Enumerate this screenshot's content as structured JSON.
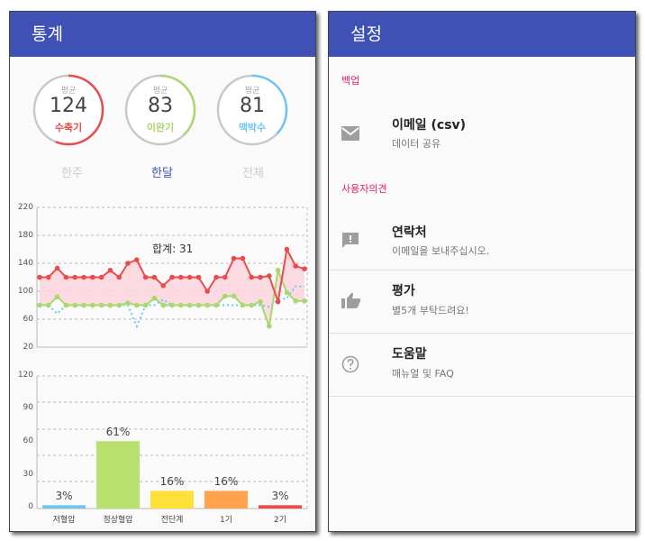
{
  "stats_screen": {
    "title": "통계",
    "rings": [
      {
        "label": "평균",
        "value": "124",
        "name": "수축기",
        "color": "#e84c4c",
        "progress": 0.56
      },
      {
        "label": "평균",
        "value": "83",
        "name": "이완기",
        "color": "#a8d86e",
        "progress": 0.38
      },
      {
        "label": "평균",
        "value": "81",
        "name": "맥박수",
        "color": "#6ec6f0",
        "progress": 0.37
      }
    ],
    "periods": [
      {
        "label": "한주",
        "active": false
      },
      {
        "label": "한달",
        "active": true
      },
      {
        "label": "전체",
        "active": false
      }
    ],
    "line_chart_annotation": "합계: 31",
    "line_chart_ticks": [
      "220",
      "180",
      "140",
      "100",
      "60",
      "20"
    ],
    "bar_chart_ticks": [
      "120",
      "90",
      "60",
      "30",
      "0"
    ],
    "bar_labels": [
      "3%",
      "61%",
      "16%",
      "16%",
      "3%"
    ],
    "bar_categories": [
      "저혈압",
      "정상혈압",
      "전단계",
      "1기",
      "2기"
    ]
  },
  "settings_screen": {
    "title": "설정",
    "sections": [
      {
        "header": "백업",
        "items": [
          {
            "icon": "email-icon",
            "title": "이메일 (csv)",
            "subtitle": "데이터 공유"
          }
        ]
      },
      {
        "header": "사용자의견",
        "items": [
          {
            "icon": "feedback-icon",
            "title": "연락처",
            "subtitle": "이메일을 보내주십시오."
          },
          {
            "icon": "thumbs-up-icon",
            "title": "평가",
            "subtitle": "별5개 부탁드려요!"
          },
          {
            "icon": "help-icon",
            "title": "도움말",
            "subtitle": "매뉴얼 및 FAQ"
          }
        ]
      }
    ]
  },
  "chart_data": [
    {
      "type": "line",
      "title": "합계: 31",
      "ylim": [
        20,
        220
      ],
      "yticks": [
        20,
        60,
        100,
        140,
        180,
        220
      ],
      "grid": true,
      "x": [
        1,
        2,
        3,
        4,
        5,
        6,
        7,
        8,
        9,
        10,
        11,
        12,
        13,
        14,
        15,
        16,
        17,
        18,
        19,
        20,
        21,
        22,
        23,
        24,
        25,
        26,
        27,
        28,
        29,
        30,
        31
      ],
      "series": [
        {
          "name": "수축기",
          "color": "#e84c4c",
          "values": [
            120,
            120,
            133,
            120,
            120,
            120,
            120,
            120,
            130,
            120,
            140,
            145,
            120,
            120,
            108,
            120,
            120,
            120,
            120,
            100,
            120,
            120,
            147,
            147,
            120,
            120,
            122,
            85,
            160,
            136,
            132
          ]
        },
        {
          "name": "이완기",
          "color": "#a8d86e",
          "values": [
            80,
            80,
            92,
            80,
            80,
            80,
            80,
            80,
            80,
            80,
            83,
            80,
            80,
            90,
            80,
            80,
            80,
            80,
            80,
            80,
            80,
            93,
            93,
            80,
            80,
            85,
            50,
            130,
            98,
            86,
            86
          ]
        },
        {
          "name": "맥박수",
          "color": "#6ec6f0",
          "style": "dotted",
          "values": [
            80,
            80,
            68,
            80,
            80,
            80,
            80,
            80,
            80,
            80,
            80,
            50,
            80,
            80,
            88,
            80,
            80,
            80,
            80,
            80,
            80,
            80,
            80,
            80,
            80,
            80,
            78,
            88,
            90,
            107,
            107
          ]
        }
      ]
    },
    {
      "type": "bar",
      "categories": [
        "저혈압",
        "정상혈압",
        "전단계",
        "1기",
        "2기"
      ],
      "values": [
        3,
        61,
        16,
        16,
        3
      ],
      "labels": [
        "3%",
        "61%",
        "16%",
        "16%",
        "3%"
      ],
      "colors": [
        "#6ec6f0",
        "#b8e06e",
        "#fde03a",
        "#ffa24d",
        "#e84c4c"
      ],
      "ylim": [
        0,
        120
      ],
      "yticks": [
        0,
        30,
        60,
        90,
        120
      ],
      "grid": true
    }
  ]
}
